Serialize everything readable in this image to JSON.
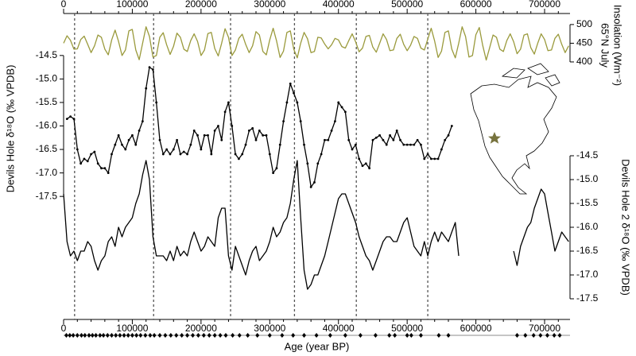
{
  "chart_data": [
    {
      "type": "line",
      "yaxis": "right",
      "ylabel_lines": [
        "65°N July",
        "Insolation (Wm⁻²)"
      ],
      "x": [
        0,
        5000,
        10000,
        15000,
        20000,
        25000,
        30000,
        35000,
        40000,
        45000,
        50000,
        55000,
        60000,
        65000,
        70000,
        75000,
        80000,
        85000,
        90000,
        95000,
        100000,
        105000,
        110000,
        115000,
        120000,
        125000,
        130000,
        135000,
        140000,
        145000,
        150000,
        155000,
        160000,
        165000,
        170000,
        175000,
        180000,
        185000,
        190000,
        195000,
        200000,
        205000,
        210000,
        215000,
        220000,
        225000,
        230000,
        235000,
        240000,
        245000,
        250000,
        255000,
        260000,
        265000,
        270000,
        275000,
        280000,
        285000,
        290000,
        295000,
        300000,
        305000,
        310000,
        315000,
        320000,
        325000,
        330000,
        335000,
        340000,
        345000,
        350000,
        355000,
        360000,
        365000,
        370000,
        375000,
        380000,
        385000,
        390000,
        395000,
        400000,
        405000,
        410000,
        415000,
        420000,
        425000,
        430000,
        435000,
        440000,
        445000,
        450000,
        455000,
        460000,
        465000,
        470000,
        475000,
        480000,
        485000,
        490000,
        495000,
        500000,
        505000,
        510000,
        515000,
        520000,
        525000,
        530000,
        535000,
        540000,
        545000,
        550000,
        555000,
        560000,
        565000,
        570000,
        575000,
        580000,
        585000,
        590000,
        595000,
        600000,
        605000,
        610000,
        615000,
        620000,
        625000,
        630000,
        635000,
        640000,
        645000,
        650000,
        655000,
        660000,
        665000,
        670000,
        675000,
        680000,
        685000,
        690000,
        695000,
        700000,
        705000,
        710000,
        715000,
        720000,
        725000,
        730000,
        735000
      ],
      "series": [
        {
          "color": "#9a9a3c",
          "values": [
            450,
            470,
            458,
            434,
            435,
            460,
            469,
            447,
            425,
            443,
            472,
            466,
            434,
            419,
            459,
            485,
            455,
            417,
            432,
            483,
            487,
            432,
            406,
            450,
            494,
            468,
            413,
            417,
            466,
            478,
            446,
            420,
            442,
            477,
            466,
            434,
            428,
            457,
            475,
            455,
            417,
            432,
            476,
            479,
            436,
            416,
            450,
            489,
            466,
            417,
            432,
            463,
            474,
            447,
            425,
            443,
            481,
            472,
            428,
            419,
            459,
            490,
            456,
            412,
            429,
            479,
            483,
            434,
            411,
            450,
            479,
            462,
            425,
            428,
            466,
            464,
            448,
            435,
            446,
            463,
            459,
            441,
            437,
            457,
            475,
            454,
            427,
            437,
            468,
            471,
            440,
            426,
            450,
            475,
            460,
            430,
            432,
            463,
            474,
            447,
            430,
            445,
            468,
            463,
            437,
            432,
            461,
            490,
            456,
            412,
            429,
            479,
            483,
            434,
            411,
            450,
            494,
            468,
            413,
            417,
            473,
            492,
            444,
            405,
            438,
            472,
            466,
            434,
            428,
            457,
            475,
            454,
            422,
            434,
            472,
            475,
            438,
            421,
            450,
            475,
            460,
            430,
            432,
            463,
            474,
            447,
            425,
            443
          ]
        }
      ],
      "xlim": [
        0,
        737000
      ],
      "xticks": [
        0,
        100000,
        200000,
        300000,
        400000,
        500000,
        600000,
        700000
      ],
      "ylim": [
        385,
        504
      ],
      "yticks": [
        400,
        450,
        500
      ],
      "reference_lines": [
        16000,
        131000,
        243000,
        336000,
        426000,
        530000
      ]
    },
    {
      "type": "line",
      "yaxis": "left",
      "ylabel": "Devils Hole δ¹⁸O (‰ VPDB)",
      "x": [
        5000,
        10000,
        15000,
        20000,
        25000,
        30000,
        35000,
        40000,
        45000,
        50000,
        55000,
        60000,
        65000,
        70000,
        75000,
        80000,
        85000,
        90000,
        95000,
        100000,
        105000,
        110000,
        115000,
        120000,
        125000,
        130000,
        135000,
        140000,
        145000,
        150000,
        155000,
        160000,
        165000,
        170000,
        175000,
        180000,
        185000,
        190000,
        195000,
        200000,
        205000,
        210000,
        215000,
        220000,
        225000,
        230000,
        235000,
        240000,
        245000,
        250000,
        255000,
        260000,
        265000,
        270000,
        275000,
        280000,
        285000,
        290000,
        295000,
        300000,
        305000,
        310000,
        315000,
        320000,
        325000,
        330000,
        335000,
        340000,
        345000,
        350000,
        355000,
        360000,
        365000,
        370000,
        375000,
        380000,
        385000,
        390000,
        395000,
        400000,
        405000,
        410000,
        415000,
        420000,
        425000,
        430000,
        435000,
        440000,
        445000,
        450000,
        455000,
        460000,
        465000,
        470000,
        475000,
        480000,
        485000,
        490000,
        495000,
        500000,
        505000,
        510000,
        515000,
        520000,
        525000,
        530000,
        535000,
        540000,
        545000,
        550000,
        555000,
        560000,
        565000
      ],
      "series": [
        {
          "color": "#000000",
          "values": [
            -15.85,
            -15.8,
            -15.85,
            -16.5,
            -16.8,
            -16.7,
            -16.75,
            -16.6,
            -16.55,
            -16.8,
            -16.9,
            -16.9,
            -17.0,
            -16.6,
            -16.4,
            -16.2,
            -16.4,
            -16.5,
            -16.3,
            -16.2,
            -16.4,
            -16.1,
            -15.9,
            -15.2,
            -14.75,
            -14.8,
            -15.5,
            -16.3,
            -16.6,
            -16.5,
            -16.6,
            -16.5,
            -16.3,
            -16.6,
            -16.55,
            -16.6,
            -16.4,
            -16.1,
            -16.2,
            -16.5,
            -16.2,
            -16.2,
            -16.6,
            -16.1,
            -16.0,
            -16.3,
            -15.7,
            -15.5,
            -16.0,
            -16.6,
            -16.7,
            -16.6,
            -16.4,
            -16.1,
            -16.05,
            -16.3,
            -16.1,
            -16.2,
            -16.2,
            -16.6,
            -17.0,
            -16.9,
            -16.4,
            -15.9,
            -15.5,
            -15.1,
            -15.3,
            -15.5,
            -15.9,
            -16.4,
            -16.8,
            -17.3,
            -17.2,
            -16.8,
            -16.6,
            -16.3,
            -16.3,
            -16.1,
            -15.9,
            -15.5,
            -15.6,
            -15.7,
            -16.3,
            -16.5,
            -16.4,
            -16.7,
            -16.85,
            -16.8,
            -16.9,
            -16.3,
            -16.25,
            -16.2,
            -16.3,
            -16.4,
            -16.2,
            -16.3,
            -16.1,
            -16.3,
            -16.4,
            -16.4,
            -16.4,
            -16.4,
            -16.3,
            -16.4,
            -16.7,
            -16.6,
            -16.7,
            -16.7,
            -16.7,
            -16.5,
            -16.3,
            -16.2,
            -16.0
          ]
        }
      ],
      "xlim": [
        0,
        737000
      ],
      "ylim": [
        -17.7,
        -14.3
      ],
      "yticks": [
        -14.5,
        {
          "value": -15,
          "label": "-15.0"
        },
        -15.5,
        {
          "value": -16,
          "label": "-16.0"
        },
        -16.5,
        {
          "value": -17,
          "label": "-17.0"
        },
        -17.5
      ]
    },
    {
      "type": "line",
      "yaxis": "right",
      "ylabel": "Devils Hole 2 δ¹⁸O (‰ VPDB)",
      "xlabel": "Age (year BP)",
      "x": [
        0,
        5000,
        10000,
        15000,
        20000,
        25000,
        30000,
        35000,
        40000,
        45000,
        50000,
        55000,
        60000,
        65000,
        70000,
        75000,
        80000,
        85000,
        90000,
        95000,
        100000,
        105000,
        110000,
        115000,
        120000,
        125000,
        130000,
        135000,
        140000,
        145000,
        150000,
        155000,
        160000,
        165000,
        170000,
        175000,
        180000,
        185000,
        190000,
        195000,
        200000,
        205000,
        210000,
        215000,
        220000,
        225000,
        230000,
        235000,
        240000,
        245000,
        250000,
        255000,
        260000,
        265000,
        270000,
        275000,
        280000,
        285000,
        290000,
        295000,
        300000,
        305000,
        310000,
        315000,
        320000,
        325000,
        330000,
        335000,
        340000,
        345000,
        350000,
        355000,
        360000,
        365000,
        370000,
        375000,
        380000,
        385000,
        390000,
        395000,
        400000,
        405000,
        410000,
        415000,
        420000,
        425000,
        430000,
        435000,
        440000,
        445000,
        450000,
        455000,
        460000,
        465000,
        470000,
        475000,
        480000,
        485000,
        490000,
        495000,
        500000,
        505000,
        510000,
        515000,
        520000,
        525000,
        530000,
        535000,
        540000,
        545000,
        550000,
        555000,
        560000,
        565000,
        570000,
        575000,
        580000,
        585000,
        590000,
        595000,
        600000,
        605000,
        610000,
        615000,
        620000,
        625000,
        630000,
        635000,
        640000,
        645000,
        650000,
        655000,
        660000,
        665000,
        670000,
        675000,
        680000,
        685000,
        690000,
        695000,
        700000,
        705000,
        710000,
        715000,
        720000,
        725000,
        730000,
        735000
      ],
      "series": [
        {
          "color": "#000000",
          "values": [
            -15.3,
            -16.3,
            -16.6,
            -16.5,
            -16.7,
            -16.5,
            -16.5,
            -16.3,
            -16.4,
            -16.7,
            -16.9,
            -16.7,
            -16.6,
            -16.3,
            -16.2,
            -16.4,
            -16.0,
            -16.2,
            -16.0,
            -15.9,
            -15.8,
            -15.5,
            -15.3,
            -14.9,
            -14.6,
            -15.0,
            -16.2,
            -16.6,
            -16.6,
            -16.6,
            -16.7,
            -16.5,
            -16.7,
            -16.4,
            -16.6,
            -16.5,
            -16.6,
            -16.3,
            -16.1,
            -16.3,
            -16.5,
            -16.4,
            -16.2,
            -16.3,
            -16.4,
            -15.8,
            -15.6,
            -15.6,
            -16.6,
            -16.9,
            -16.4,
            -16.6,
            -16.8,
            -17.0,
            -16.7,
            -16.5,
            -16.4,
            -16.7,
            -16.6,
            -16.5,
            -16.3,
            -16.0,
            -16.2,
            -16.1,
            -15.9,
            -15.8,
            -15.5,
            -15.0,
            -14.6,
            -15.8,
            -16.9,
            -17.3,
            -17.2,
            -17.0,
            -17.0,
            -16.8,
            -16.6,
            -16.3,
            -16.0,
            -15.7,
            -15.4,
            -15.3,
            -15.3,
            -15.5,
            -15.7,
            -15.9,
            -16.2,
            -16.4,
            -16.6,
            -16.7,
            -16.9,
            -16.7,
            -16.5,
            -16.3,
            -16.2,
            -16.2,
            -16.3,
            -16.3,
            -16.1,
            -15.9,
            -15.8,
            -16.1,
            -16.4,
            -16.5,
            -16.6,
            -16.3,
            -16.6,
            -16.3,
            -16.1,
            -16.3,
            -16.1,
            -16.2,
            -16.3,
            -16.1,
            -15.9,
            -16.6,
            null,
            null,
            null,
            null,
            null,
            null,
            null,
            null,
            null,
            null,
            null,
            null,
            null,
            null,
            null,
            -16.5,
            -16.8,
            -16.4,
            -16.2,
            -16.0,
            -15.9,
            -15.6,
            -15.4,
            -15.2,
            -15.3,
            -15.7,
            -16.1,
            -16.5,
            -16.3,
            -16.1,
            -16.2,
            -16.3
          ]
        }
      ],
      "xlim": [
        0,
        737000
      ],
      "xticks": [
        0,
        100000,
        200000,
        300000,
        400000,
        500000,
        600000,
        700000
      ],
      "ylim": [
        -17.6,
        -14.4
      ],
      "yticks": [
        -14.5,
        {
          "value": -15,
          "label": "-15.0"
        },
        -15.5,
        {
          "value": -16,
          "label": "-16.0"
        },
        -16.5,
        {
          "value": -17,
          "label": "-17.0"
        },
        -17.5
      ],
      "dates": [
        4000,
        9000,
        14000,
        20000,
        26000,
        31000,
        37000,
        42000,
        47000,
        53000,
        58000,
        64000,
        70000,
        76000,
        82000,
        88000,
        94000,
        100000,
        106000,
        112000,
        119000,
        126000,
        132000,
        140000,
        148000,
        156000,
        164000,
        172000,
        180000,
        188000,
        196000,
        204000,
        212000,
        220000,
        228000,
        236000,
        246000,
        256000,
        268000,
        282000,
        300000,
        318000,
        334000,
        350000,
        368000,
        388000,
        410000,
        432000,
        454000,
        474000,
        482000,
        500000,
        506000,
        520000,
        546000,
        560000,
        660000,
        672000,
        684000,
        694000,
        704000,
        714000,
        722000
      ]
    }
  ]
}
